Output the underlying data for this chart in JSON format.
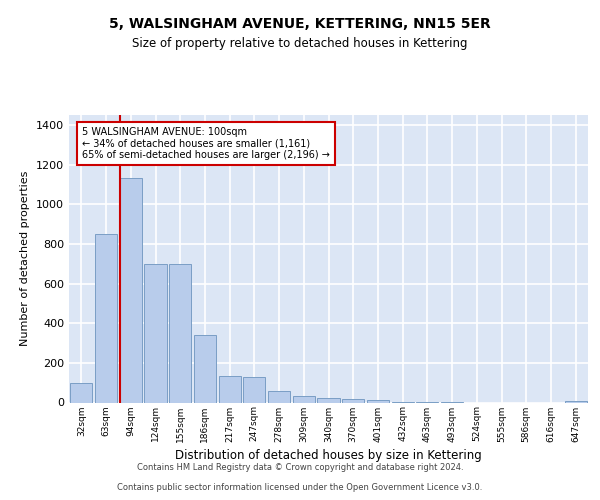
{
  "title": "5, WALSINGHAM AVENUE, KETTERING, NN15 5ER",
  "subtitle": "Size of property relative to detached houses in Kettering",
  "xlabel": "Distribution of detached houses by size in Kettering",
  "ylabel": "Number of detached properties",
  "bar_color": "#b8cceb",
  "bar_edge_color": "#7a9ec5",
  "background_color": "#dce6f5",
  "grid_color": "#ffffff",
  "categories": [
    "32sqm",
    "63sqm",
    "94sqm",
    "124sqm",
    "155sqm",
    "186sqm",
    "217sqm",
    "247sqm",
    "278sqm",
    "309sqm",
    "340sqm",
    "370sqm",
    "401sqm",
    "432sqm",
    "463sqm",
    "493sqm",
    "524sqm",
    "555sqm",
    "586sqm",
    "616sqm",
    "647sqm"
  ],
  "values": [
    100,
    850,
    1130,
    700,
    700,
    340,
    135,
    130,
    60,
    35,
    25,
    20,
    15,
    5,
    5,
    3,
    0,
    0,
    0,
    0,
    10
  ],
  "annotation_text": "5 WALSINGHAM AVENUE: 100sqm\n← 34% of detached houses are smaller (1,161)\n65% of semi-detached houses are larger (2,196) →",
  "annotation_box_color": "#ffffff",
  "annotation_border_color": "#cc0000",
  "vline_color": "#cc0000",
  "vline_bar_index": 2,
  "footer_line1": "Contains HM Land Registry data © Crown copyright and database right 2024.",
  "footer_line2": "Contains public sector information licensed under the Open Government Licence v3.0.",
  "ylim": [
    0,
    1450
  ],
  "yticks": [
    0,
    200,
    400,
    600,
    800,
    1000,
    1200,
    1400
  ]
}
